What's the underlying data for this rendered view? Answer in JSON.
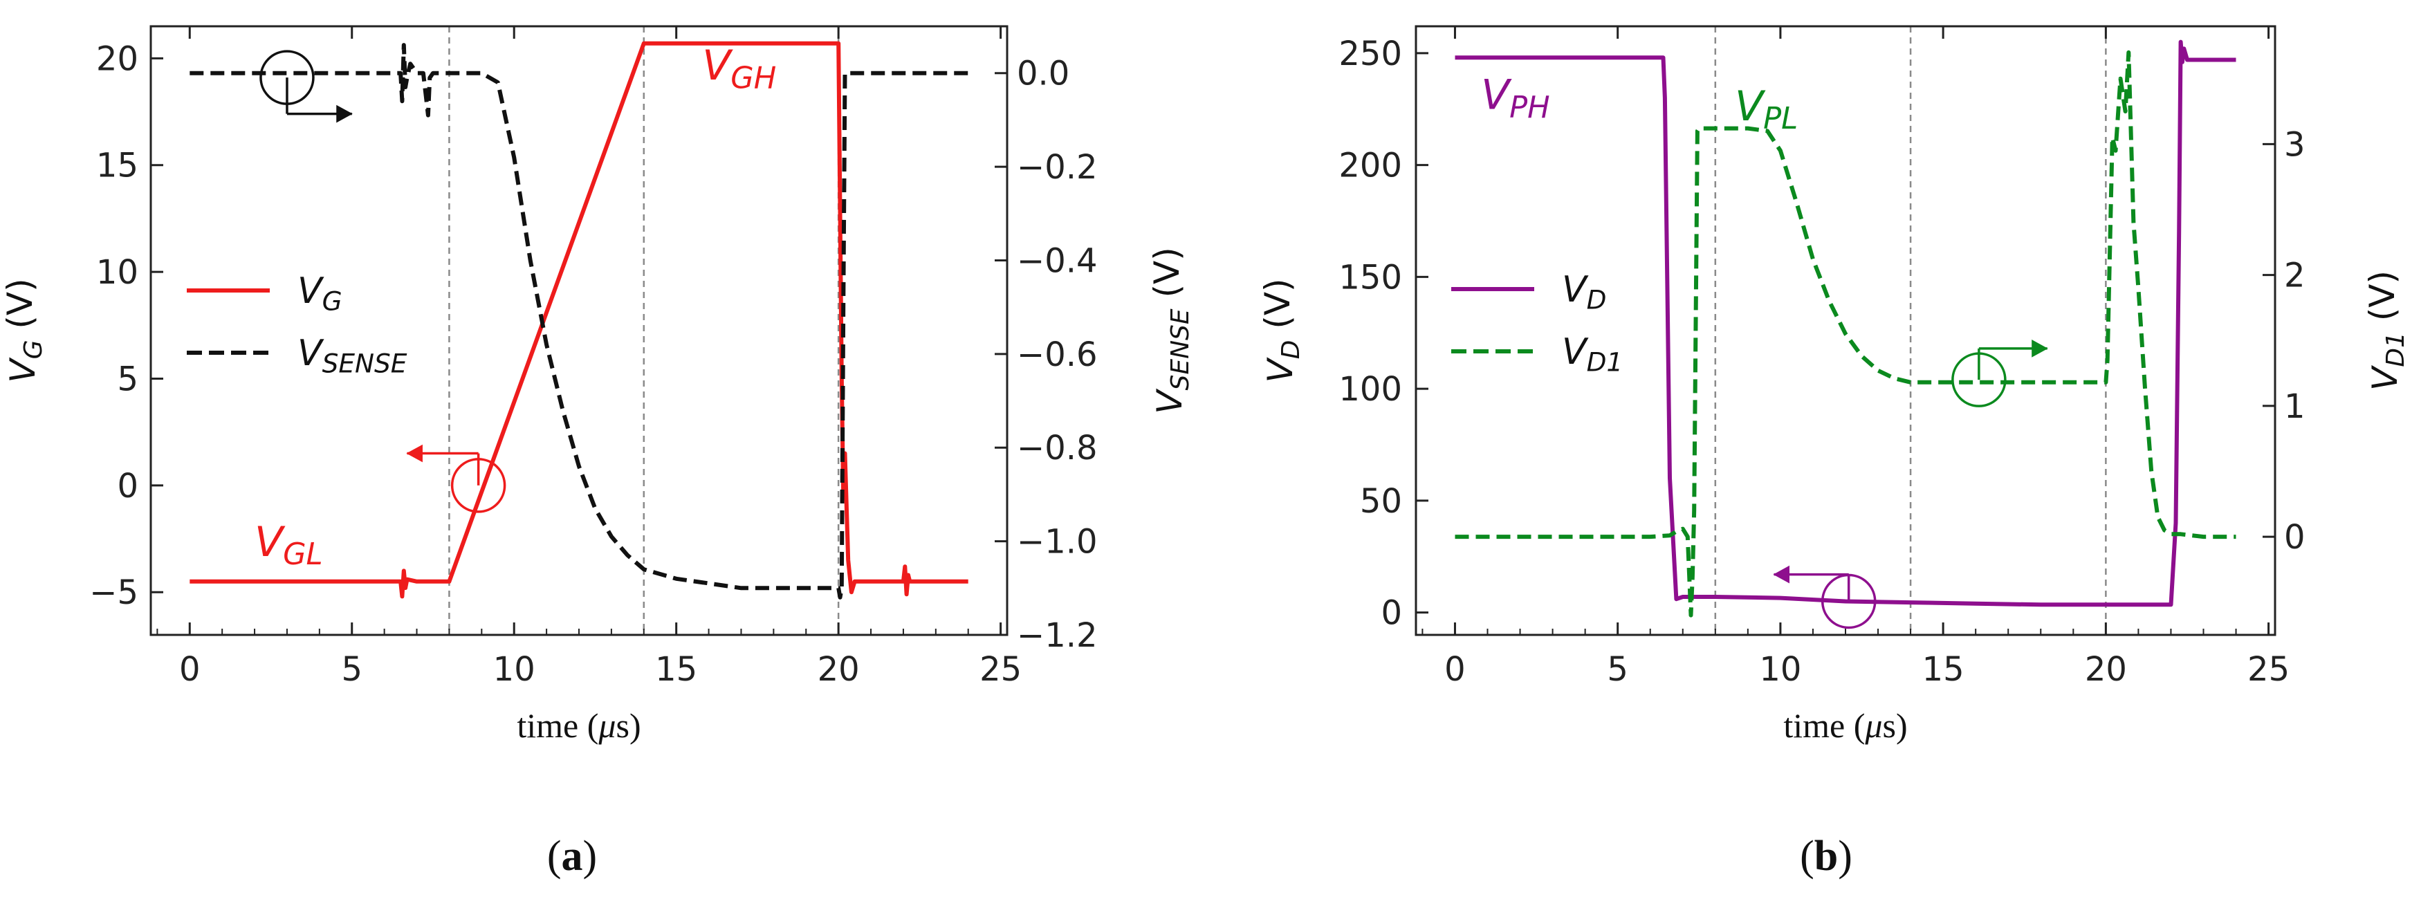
{
  "colors": {
    "vg": "#ee1c1c",
    "vsense": "#111111",
    "vd": "#8e0f8e",
    "vd1": "#0b8a1e",
    "guide": "#8a8a8a",
    "axis": "#222222"
  },
  "chart_data": [
    {
      "type": "line",
      "panel_label": "(a)",
      "xlabel": "time (μs)",
      "ylabel_left": "V_G (V)",
      "ylabel_right": "V_SENSE (V)",
      "xlim": [
        -1.2,
        25.2
      ],
      "ylim_left": [
        -7,
        21.5
      ],
      "ylim_right": [
        -1.2,
        0.1
      ],
      "xticks": [
        0,
        5,
        10,
        15,
        20,
        25
      ],
      "yticks_left": [
        -5,
        0,
        5,
        10,
        15,
        20
      ],
      "yticks_right": [
        -1.2,
        -1.0,
        -0.8,
        -0.6,
        -0.4,
        -0.2,
        0.0
      ],
      "guide_lines_x": [
        8,
        14,
        20
      ],
      "legend": {
        "position": "center-left",
        "entries": [
          {
            "label": "V_G",
            "series": "V_G",
            "style": "solid"
          },
          {
            "label": "V_SENSE",
            "series": "V_SENSE",
            "style": "dashed"
          }
        ]
      },
      "annotations": [
        {
          "text": "V_GH",
          "x": 15.8,
          "y": 19.0,
          "axis": "left",
          "color": "vg"
        },
        {
          "text": "V_GL",
          "x": 2.0,
          "y": -3.3,
          "axis": "left",
          "color": "vg"
        }
      ],
      "axis_markers": [
        {
          "center": [
            3.0,
            19.1
          ],
          "axis": "left",
          "arrow_to": [
            5.0,
            17.4
          ],
          "points_to": "right",
          "color": "vsense"
        },
        {
          "center": [
            8.9,
            0.0
          ],
          "axis": "left",
          "arrow_to": [
            6.7,
            1.5
          ],
          "points_to": "left",
          "color": "vg"
        }
      ],
      "series": [
        {
          "name": "V_G",
          "axis": "left",
          "style": "solid",
          "x": [
            0,
            6.5,
            6.55,
            6.6,
            6.65,
            6.7,
            7.0,
            8.0,
            14.0,
            20.0,
            20.1,
            20.15,
            20.2,
            20.3,
            20.4,
            20.5,
            21.0,
            22.0,
            22.05,
            22.1,
            22.15,
            22.2,
            24.0
          ],
          "y": [
            -4.5,
            -4.5,
            -5.2,
            -4.0,
            -4.8,
            -4.4,
            -4.5,
            -4.5,
            20.7,
            20.7,
            5.0,
            -0.5,
            1.5,
            -3.5,
            -5.0,
            -4.5,
            -4.5,
            -4.5,
            -3.8,
            -5.1,
            -4.2,
            -4.5,
            -4.5
          ]
        },
        {
          "name": "V_SENSE",
          "axis": "right",
          "style": "dashed",
          "x": [
            0,
            6.5,
            6.55,
            6.6,
            6.65,
            6.7,
            6.8,
            7.0,
            7.2,
            7.3,
            7.35,
            7.4,
            7.5,
            8.0,
            9.0,
            9.5,
            10.0,
            10.5,
            11.0,
            11.5,
            12.0,
            12.5,
            13.0,
            13.5,
            14.0,
            15.0,
            16.0,
            17.0,
            18.0,
            19.0,
            20.0,
            20.05,
            20.1,
            20.15,
            20.2,
            20.25,
            24.0
          ],
          "y": [
            0.0,
            0.0,
            -0.06,
            0.06,
            -0.03,
            -0.01,
            0.02,
            0.0,
            0.0,
            -0.06,
            -0.09,
            -0.01,
            0.0,
            0.0,
            0.0,
            -0.02,
            -0.18,
            -0.4,
            -0.58,
            -0.72,
            -0.84,
            -0.93,
            -0.99,
            -1.03,
            -1.06,
            -1.08,
            -1.09,
            -1.1,
            -1.1,
            -1.1,
            -1.1,
            -1.12,
            -1.1,
            -0.5,
            0.0,
            0.0,
            0.0
          ]
        }
      ]
    },
    {
      "type": "line",
      "panel_label": "(b)",
      "xlabel": "time (μs)",
      "ylabel_left": "V_D (V)",
      "ylabel_right": "V_D1 (V)",
      "xlim": [
        -1.2,
        25.2
      ],
      "ylim_left": [
        -10,
        262
      ],
      "ylim_right": [
        -0.75,
        3.9
      ],
      "xticks": [
        0,
        5,
        10,
        15,
        20,
        25
      ],
      "yticks_left": [
        0,
        50,
        100,
        150,
        200,
        250
      ],
      "yticks_right": [
        0,
        1,
        2,
        3
      ],
      "guide_lines_x": [
        8,
        14,
        20
      ],
      "legend": {
        "position": "center-left",
        "entries": [
          {
            "label": "V_D",
            "series": "V_D",
            "style": "solid"
          },
          {
            "label": "V_D1",
            "series": "V_D1",
            "style": "dashed"
          }
        ]
      },
      "annotations": [
        {
          "text": "V_PH",
          "x": 0.8,
          "y": 225,
          "axis": "left",
          "color": "vd"
        },
        {
          "text": "V_PL",
          "x": 8.6,
          "y": 220,
          "axis": "left",
          "color": "vd1"
        }
      ],
      "axis_markers": [
        {
          "center": [
            16.1,
            104
          ],
          "axis": "left",
          "arrow_to": [
            18.2,
            118
          ],
          "points_to": "right",
          "color": "vd1"
        },
        {
          "center": [
            12.1,
            5
          ],
          "axis": "left",
          "arrow_to": [
            9.8,
            17
          ],
          "points_to": "left",
          "color": "vd"
        }
      ],
      "series": [
        {
          "name": "V_D",
          "axis": "left",
          "style": "solid",
          "x": [
            0,
            6.4,
            6.45,
            6.6,
            6.8,
            7.0,
            8.0,
            10.0,
            12.0,
            14.0,
            16.0,
            18.0,
            20.0,
            22.0,
            22.15,
            22.25,
            22.3,
            22.35,
            22.4,
            22.5,
            24.0
          ],
          "y": [
            248,
            248,
            230,
            60,
            6,
            7,
            7,
            6.5,
            5,
            4.5,
            4,
            3.5,
            3.5,
            3.5,
            40,
            170,
            255,
            246,
            252,
            247,
            247
          ],
          "label_color": "vd"
        },
        {
          "name": "V_D1",
          "axis": "right",
          "style": "dashed",
          "x": [
            0,
            6.0,
            6.6,
            6.8,
            7.0,
            7.15,
            7.25,
            7.3,
            7.35,
            7.45,
            7.5,
            8.0,
            9.0,
            9.6,
            10.0,
            10.5,
            11.0,
            11.5,
            12.0,
            12.5,
            13.0,
            13.5,
            14.0,
            15.0,
            16.0,
            17.0,
            18.0,
            19.0,
            20.0,
            20.05,
            20.2,
            20.3,
            20.45,
            20.6,
            20.7,
            20.85,
            21.0,
            21.2,
            21.4,
            21.6,
            21.8,
            22.0,
            22.3,
            23.0,
            24.0
          ],
          "y": [
            0.0,
            0.0,
            0.01,
            0.04,
            0.06,
            0.0,
            -0.6,
            -0.3,
            0.2,
            3.1,
            3.12,
            3.12,
            3.12,
            3.1,
            2.95,
            2.55,
            2.12,
            1.8,
            1.55,
            1.38,
            1.27,
            1.21,
            1.18,
            1.18,
            1.18,
            1.18,
            1.18,
            1.18,
            1.18,
            1.35,
            3.05,
            2.95,
            3.5,
            3.25,
            3.7,
            2.4,
            1.9,
            1.15,
            0.5,
            0.15,
            0.05,
            0.02,
            0.02,
            0.0,
            0.0
          ],
          "label_color": "vd1"
        }
      ]
    }
  ]
}
